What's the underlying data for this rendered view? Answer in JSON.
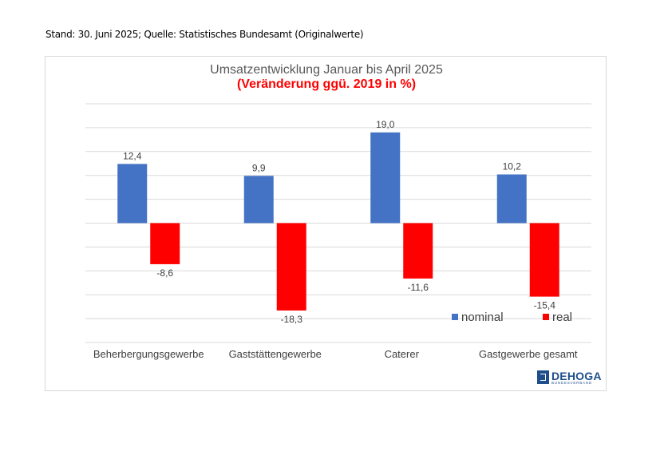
{
  "header": {
    "stand": "Stand: 30. Juni 2025; Quelle: Statistisches Bundesamt (Originalwerte)"
  },
  "chart_data": {
    "type": "bar",
    "title": "Umsatzentwicklung Januar bis April 2025",
    "subtitle": "(Veränderung ggü. 2019 in %)",
    "categories": [
      "Beherbergungsgewerbe",
      "Gaststättengewerbe",
      "Caterer",
      "Gastgewerbe gesamt"
    ],
    "series": [
      {
        "name": "nominal",
        "values": [
          12.4,
          9.9,
          19.0,
          10.2
        ],
        "labels": [
          "12,4",
          "9,9",
          "19,0",
          "10,2"
        ],
        "color": "#4472c4"
      },
      {
        "name": "real",
        "values": [
          -8.6,
          -18.3,
          -11.6,
          -15.4
        ],
        "labels": [
          "-8,6",
          "-18,3",
          "-11,6",
          "-15,4"
        ],
        "color": "#ff0000"
      }
    ],
    "ylim": [
      -25,
      25
    ],
    "grid": true,
    "legend": "bottom-right",
    "xlabel": "",
    "ylabel": ""
  },
  "logo": {
    "name": "DEHOGA",
    "sub": "BUNDESVERBAND"
  }
}
